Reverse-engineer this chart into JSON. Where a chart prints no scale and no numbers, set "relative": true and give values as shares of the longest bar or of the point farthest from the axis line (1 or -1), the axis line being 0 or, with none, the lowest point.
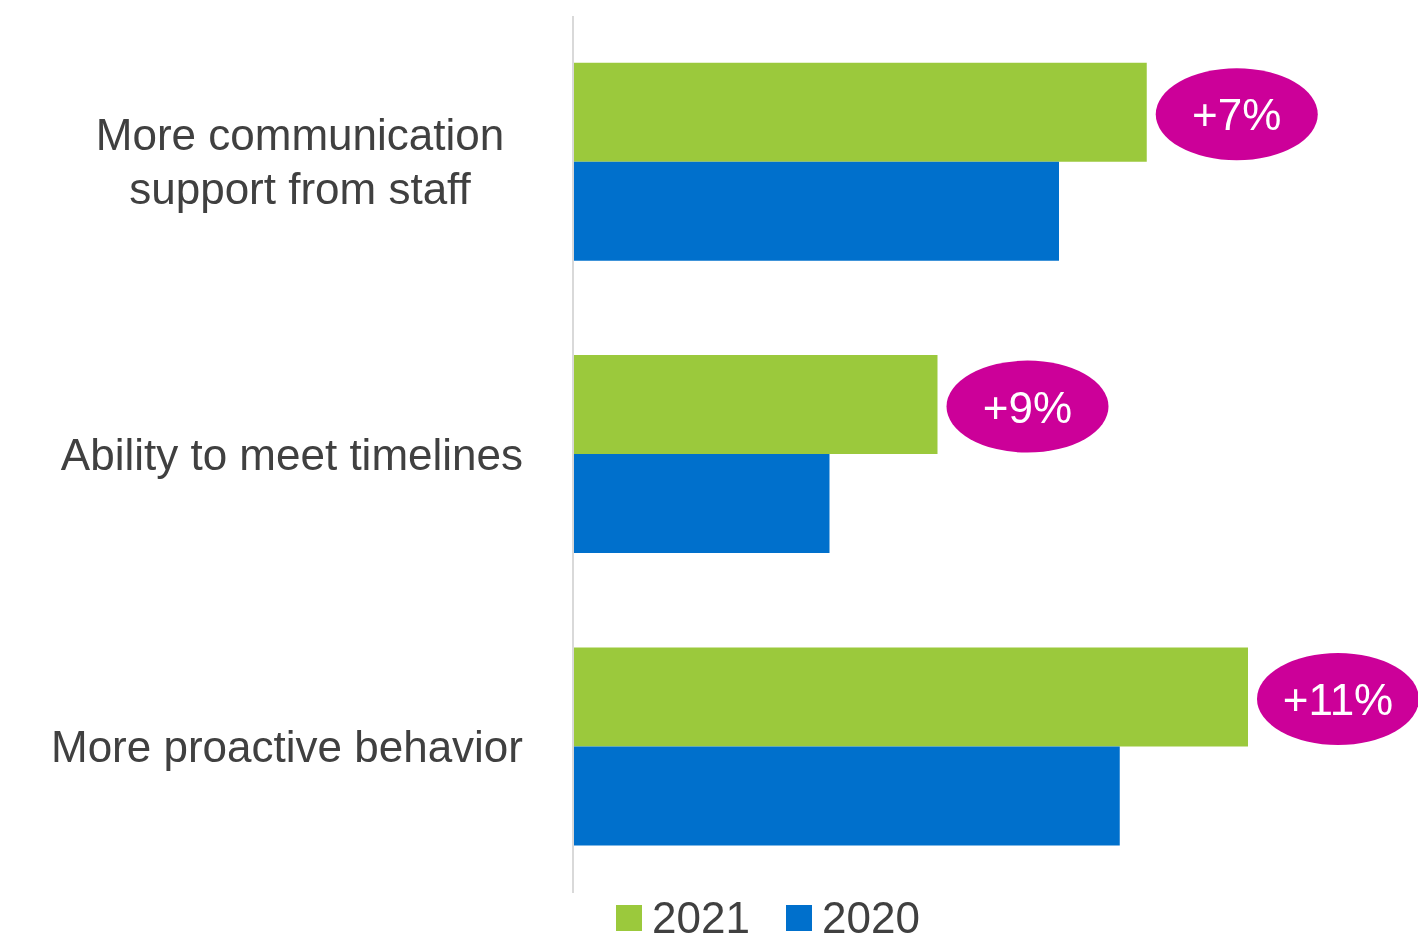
{
  "chart_data": {
    "type": "bar",
    "orientation": "horizontal",
    "relative": true,
    "categories": [
      "More communication support from staff",
      "Ability to meet timelines",
      "More proactive behavior"
    ],
    "series": [
      {
        "name": "2021",
        "color": "#9bc93c",
        "values": [
          0.85,
          0.54,
          1
        ]
      },
      {
        "name": "2020",
        "color": "#0070cc",
        "values": [
          0.72,
          0.38,
          0.81
        ]
      }
    ],
    "annotations": [
      "+7%",
      "+9%",
      "+11%"
    ],
    "legend": "bottom",
    "grid": false
  }
}
